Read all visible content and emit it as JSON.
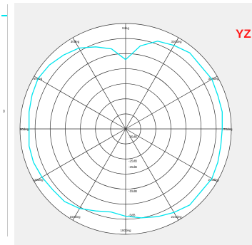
{
  "left_fragment": {
    "tick_label": "0"
  },
  "plane_label": "YZ",
  "colors": {
    "trace": "#00e5ee",
    "grid": "#333333",
    "panel_bg": "#f0f0f0",
    "plot_bg": "#ffffff",
    "label": "#ff1a1a"
  },
  "chart_data": {
    "type": "polar-line",
    "radial_unit": "dB",
    "radial_range": [
      -35,
      0
    ],
    "radial_rings": [
      -35,
      -30,
      -25,
      -20,
      -15,
      -10,
      -5,
      0
    ],
    "radial_tick_labels": [
      "-35dB",
      "-25dB",
      "-25dB",
      "-15dB",
      "-5dB"
    ],
    "angle_labels": [
      "0deg",
      "30deg",
      "60deg",
      "90deg",
      "120deg",
      "150deg",
      "180deg",
      "210deg",
      "240deg",
      "270deg",
      "300deg",
      "330deg"
    ],
    "grid": true,
    "series": [
      {
        "color": "#00e5ee",
        "angles_deg": [
          0,
          10,
          20,
          30,
          40,
          50,
          60,
          70,
          80,
          90,
          100,
          110,
          120,
          130,
          140,
          150,
          160,
          170,
          180,
          190,
          200,
          210,
          220,
          230,
          240,
          250,
          260,
          270,
          280,
          290,
          300,
          310,
          320,
          330,
          340,
          350
        ],
        "values_db": [
          -12,
          -8,
          -6,
          -4,
          -3,
          -2,
          -1.5,
          -2,
          -2.5,
          -3,
          -2.5,
          -2.5,
          -3,
          -3.5,
          -3.5,
          -4.5,
          -6,
          -7,
          -6,
          -5,
          -4,
          -3,
          -2,
          -2.5,
          -2,
          -2.5,
          -3,
          -3,
          -2.5,
          -2.5,
          -2,
          -2.5,
          -2,
          -3,
          -4,
          -7
        ]
      }
    ]
  }
}
